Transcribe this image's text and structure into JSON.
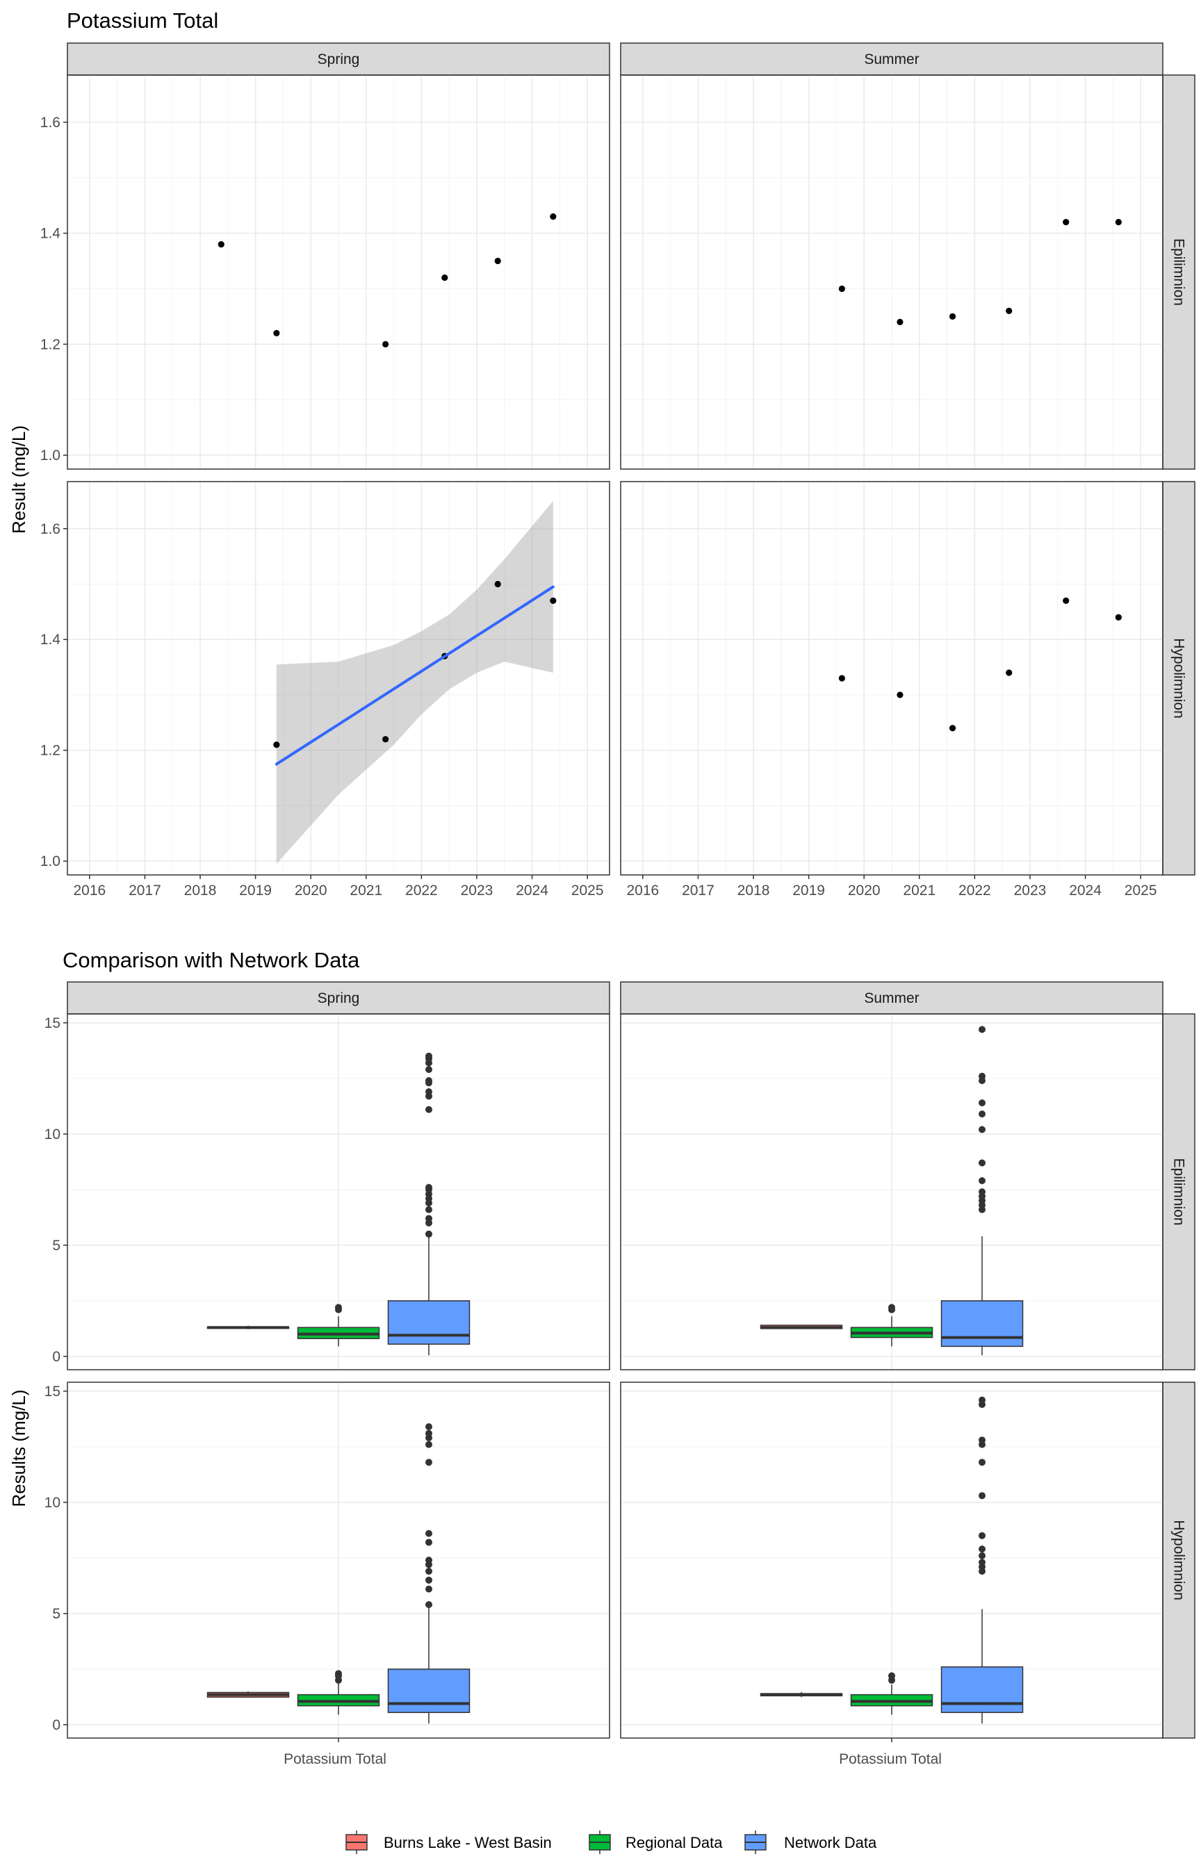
{
  "figure": {
    "legend": [
      {
        "label": "Burns Lake - West Basin",
        "color": "#F8766D"
      },
      {
        "label": "Regional Data",
        "color": "#00BA38"
      },
      {
        "label": "Network Data",
        "color": "#619CFF"
      }
    ]
  },
  "chart_data": [
    {
      "type": "scatter",
      "title": "Potassium Total",
      "ylabel": "Result (mg/L)",
      "xlabel": "",
      "x_ticks": [
        2016,
        2017,
        2018,
        2019,
        2020,
        2021,
        2022,
        2023,
        2024,
        2025
      ],
      "y_ticks": [
        1.0,
        1.2,
        1.4,
        1.6
      ],
      "xlim": [
        2015.6,
        2025.4
      ],
      "ylim": [
        0.975,
        1.685
      ],
      "grid": true,
      "facet_cols": [
        "Spring",
        "Summer"
      ],
      "facet_rows": [
        "Epilimnion",
        "Hypolimnion"
      ],
      "panels": [
        {
          "col": "Spring",
          "row": "Epilimnion",
          "points": [
            [
              2018.38,
              1.38
            ],
            [
              2019.38,
              1.22
            ],
            [
              2021.35,
              1.2
            ],
            [
              2022.42,
              1.32
            ],
            [
              2023.38,
              1.35
            ],
            [
              2024.38,
              1.43
            ]
          ]
        },
        {
          "col": "Summer",
          "row": "Epilimnion",
          "points": [
            [
              2019.6,
              1.3
            ],
            [
              2020.65,
              1.24
            ],
            [
              2021.6,
              1.25
            ],
            [
              2022.62,
              1.26
            ],
            [
              2023.65,
              1.42
            ],
            [
              2024.6,
              1.42
            ]
          ]
        },
        {
          "col": "Spring",
          "row": "Hypolimnion",
          "points": [
            [
              2019.38,
              1.21
            ],
            [
              2021.35,
              1.22
            ],
            [
              2022.42,
              1.37
            ],
            [
              2023.38,
              1.5
            ],
            [
              2024.38,
              1.47
            ]
          ],
          "trend": {
            "x": [
              2019.38,
              2024.38
            ],
            "y": [
              1.175,
              1.495
            ],
            "ci": [
              [
                2019.38,
                0.995,
                1.355
              ],
              [
                2020.5,
                1.12,
                1.36
              ],
              [
                2021.5,
                1.21,
                1.39
              ],
              [
                2022.0,
                1.265,
                1.415
              ],
              [
                2022.5,
                1.31,
                1.445
              ],
              [
                2023.0,
                1.34,
                1.49
              ],
              [
                2023.5,
                1.36,
                1.545
              ],
              [
                2024.38,
                1.34,
                1.65
              ]
            ]
          }
        },
        {
          "col": "Summer",
          "row": "Hypolimnion",
          "points": [
            [
              2019.6,
              1.33
            ],
            [
              2020.65,
              1.3
            ],
            [
              2021.6,
              1.24
            ],
            [
              2022.62,
              1.34
            ],
            [
              2023.65,
              1.47
            ],
            [
              2024.6,
              1.44
            ]
          ]
        }
      ]
    },
    {
      "type": "box",
      "title": "Comparison with Network Data",
      "ylabel": "Results (mg/L)",
      "x_category": "Potassium Total",
      "y_ticks": [
        0,
        5,
        10,
        15
      ],
      "ylim": [
        -0.6,
        15.4
      ],
      "grid": true,
      "facet_cols": [
        "Spring",
        "Summer"
      ],
      "facet_rows": [
        "Epilimnion",
        "Hypolimnion"
      ],
      "series_order": [
        "Burns Lake - West Basin",
        "Regional Data",
        "Network Data"
      ],
      "panels": [
        {
          "col": "Spring",
          "row": "Epilimnion",
          "boxes": [
            {
              "series": "Burns Lake - West Basin",
              "q1": 1.26,
              "median": 1.3,
              "q3": 1.33,
              "whisker_low": 1.22,
              "whisker_high": 1.38,
              "outliers": []
            },
            {
              "series": "Regional Data",
              "q1": 0.8,
              "median": 1.0,
              "q3": 1.3,
              "whisker_low": 0.45,
              "whisker_high": 1.8,
              "outliers": [
                2.2,
                2.1
              ]
            },
            {
              "series": "Network Data",
              "q1": 0.55,
              "median": 0.95,
              "q3": 2.5,
              "whisker_low": 0.05,
              "whisker_high": 5.4,
              "outliers": [
                5.5,
                6.0,
                6.2,
                6.6,
                6.9,
                7.1,
                7.3,
                7.5,
                7.6,
                11.1,
                11.7,
                11.9,
                12.3,
                12.4,
                12.9,
                13.2,
                13.4,
                13.5
              ]
            }
          ]
        },
        {
          "col": "Summer",
          "row": "Epilimnion",
          "boxes": [
            {
              "series": "Burns Lake - West Basin",
              "q1": 1.25,
              "median": 1.3,
              "q3": 1.4,
              "whisker_low": 1.24,
              "whisker_high": 1.42,
              "outliers": []
            },
            {
              "series": "Regional Data",
              "q1": 0.85,
              "median": 1.05,
              "q3": 1.3,
              "whisker_low": 0.45,
              "whisker_high": 1.8,
              "outliers": [
                2.2,
                2.1
              ]
            },
            {
              "series": "Network Data",
              "q1": 0.45,
              "median": 0.85,
              "q3": 2.5,
              "whisker_low": 0.05,
              "whisker_high": 5.4,
              "outliers": [
                6.6,
                6.8,
                7.0,
                7.2,
                7.4,
                7.9,
                8.7,
                10.2,
                10.9,
                11.4,
                12.4,
                12.6,
                14.7
              ]
            }
          ]
        },
        {
          "col": "Spring",
          "row": "Hypolimnion",
          "boxes": [
            {
              "series": "Burns Lake - West Basin",
              "q1": 1.24,
              "median": 1.35,
              "q3": 1.45,
              "whisker_low": 1.21,
              "whisker_high": 1.5,
              "outliers": []
            },
            {
              "series": "Regional Data",
              "q1": 0.85,
              "median": 1.05,
              "q3": 1.35,
              "whisker_low": 0.45,
              "whisker_high": 1.85,
              "outliers": [
                2.0,
                2.2,
                2.3
              ]
            },
            {
              "series": "Network Data",
              "q1": 0.55,
              "median": 0.95,
              "q3": 2.5,
              "whisker_low": 0.05,
              "whisker_high": 5.4,
              "outliers": [
                5.4,
                6.1,
                6.5,
                6.9,
                7.2,
                7.4,
                8.2,
                8.6,
                11.8,
                12.6,
                12.9,
                13.1,
                13.4
              ]
            }
          ]
        },
        {
          "col": "Summer",
          "row": "Hypolimnion",
          "boxes": [
            {
              "series": "Burns Lake - West Basin",
              "q1": 1.3,
              "median": 1.35,
              "q3": 1.4,
              "whisker_low": 1.24,
              "whisker_high": 1.47,
              "outliers": []
            },
            {
              "series": "Regional Data",
              "q1": 0.85,
              "median": 1.05,
              "q3": 1.35,
              "whisker_low": 0.45,
              "whisker_high": 1.8,
              "outliers": [
                2.0,
                2.2
              ]
            },
            {
              "series": "Network Data",
              "q1": 0.55,
              "median": 0.95,
              "q3": 2.6,
              "whisker_low": 0.05,
              "whisker_high": 5.2,
              "outliers": [
                6.9,
                7.1,
                7.3,
                7.6,
                7.9,
                8.5,
                10.3,
                11.8,
                12.6,
                12.8,
                14.4,
                14.6
              ]
            }
          ]
        }
      ]
    }
  ]
}
